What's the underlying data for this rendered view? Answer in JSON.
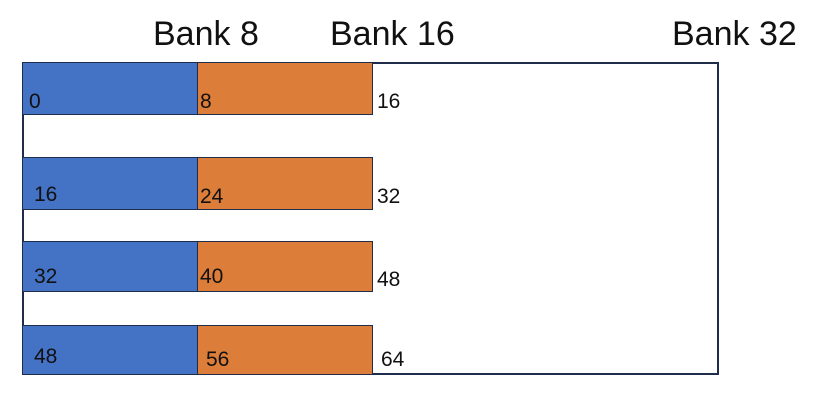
{
  "headers": {
    "bank8": "Bank 8",
    "bank16": "Bank 16",
    "bank32": "Bank 32"
  },
  "rows": [
    {
      "start": "0",
      "mid": "8",
      "end": "16"
    },
    {
      "start": "16",
      "mid": "24",
      "end": "32"
    },
    {
      "start": "32",
      "mid": "40",
      "end": "48"
    },
    {
      "start": "48",
      "mid": "56",
      "end": "64"
    }
  ],
  "colors": {
    "bank_a": "#4472c4",
    "bank_b": "#dd7d3a",
    "outline": "#1f2d4a"
  }
}
